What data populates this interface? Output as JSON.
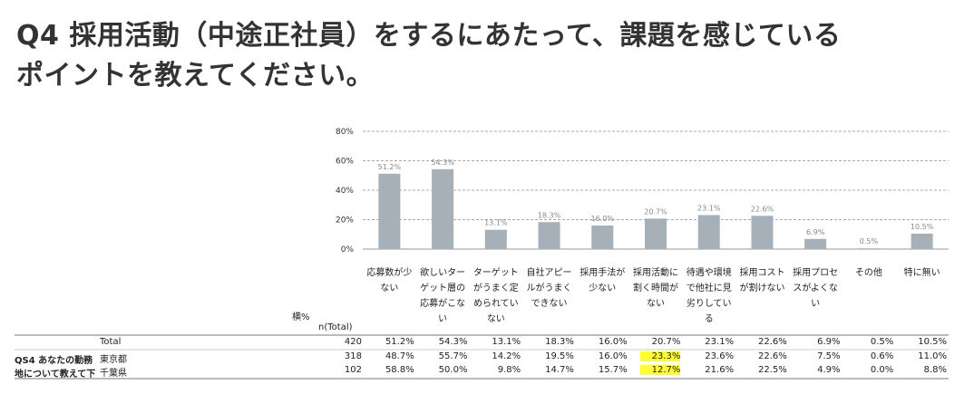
{
  "title_line1": "Q4 採用活動（中途正社員）をするにあたって、課題を感じている",
  "title_line2": "ポイントを教えてください。",
  "chart_data": {
    "type": "bar",
    "ylim": [
      0,
      80
    ],
    "yticks": [
      "0%",
      "20%",
      "40%",
      "60%",
      "80%"
    ],
    "grid": true,
    "bar_color": "#a5b0b8",
    "categories": [
      "応募数が少ない",
      "欲しいターゲット層の応募がこない",
      "ターゲットがうまく定められていない",
      "自社アピールがうまくできない",
      "採用手法が少ない",
      "採用活動に割く時間がない",
      "待遇や環境で他社に見劣りしている",
      "採用コストが割けない",
      "採用プロセスがよくない",
      "その他",
      "特に無い"
    ],
    "values": [
      51.2,
      54.3,
      13.1,
      18.3,
      16.0,
      20.7,
      23.1,
      22.6,
      6.9,
      0.5,
      10.5
    ],
    "data_labels": [
      "51.2%",
      "54.3%",
      "13.1%",
      "18.3%",
      "16.0%",
      "20.7%",
      "23.1%",
      "22.6%",
      "6.9%",
      "0.5%",
      "10.5%"
    ]
  },
  "table": {
    "corner_label": "横%",
    "n_header": "n(Total)",
    "group_label_line1": "QS4 あなたの勤務",
    "group_label_line2": "地について教えて下",
    "highlight_color": "#ffff33",
    "rows": [
      {
        "label": "Total",
        "n": "420",
        "values": [
          "51.2%",
          "54.3%",
          "13.1%",
          "18.3%",
          "16.0%",
          "20.7%",
          "23.1%",
          "22.6%",
          "6.9%",
          "0.5%",
          "10.5%"
        ]
      },
      {
        "label": "東京都",
        "n": "318",
        "values": [
          "48.7%",
          "55.7%",
          "14.2%",
          "19.5%",
          "16.0%",
          "23.3%",
          "23.6%",
          "22.6%",
          "7.5%",
          "0.6%",
          "11.0%"
        ]
      },
      {
        "label": "千葉県",
        "n": "102",
        "values": [
          "58.8%",
          "50.0%",
          "9.8%",
          "14.7%",
          "15.7%",
          "12.7%",
          "21.6%",
          "22.5%",
          "4.9%",
          "0.0%",
          "8.8%"
        ]
      }
    ],
    "highlighted": [
      {
        "row": 1,
        "col": 5
      },
      {
        "row": 2,
        "col": 5
      }
    ]
  }
}
